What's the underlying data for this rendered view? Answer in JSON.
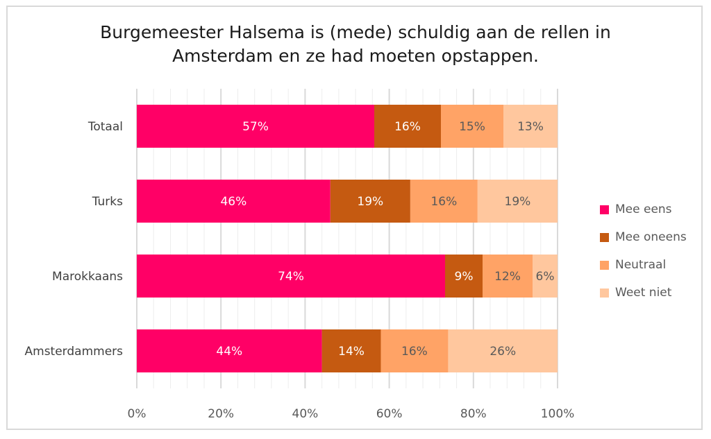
{
  "chart_data": {
    "type": "bar",
    "orientation": "horizontal",
    "stacked": "percent",
    "title_lines": [
      "Burgemeester Halsema is (mede) schuldig aan de rellen in",
      "Amsterdam en ze had moeten opstappen."
    ],
    "categories": [
      "Totaal",
      "Turks",
      "Marokkaans",
      "Amsterdammers"
    ],
    "series": [
      {
        "name": "Mee eens",
        "color": "#ff0066",
        "values": [
          57,
          46,
          74,
          44
        ]
      },
      {
        "name": "Mee oneens",
        "color": "#c55a11",
        "values": [
          16,
          19,
          9,
          14
        ]
      },
      {
        "name": "Neutraal",
        "color": "#ffa366",
        "values": [
          15,
          16,
          12,
          16
        ]
      },
      {
        "name": "Weet niet",
        "color": "#ffc79e",
        "values": [
          13,
          19,
          6,
          26
        ]
      }
    ],
    "x_ticks": [
      "0%",
      "20%",
      "40%",
      "60%",
      "80%",
      "100%"
    ],
    "xlim": [
      0,
      100
    ],
    "grid": true,
    "legend_position": "right"
  }
}
